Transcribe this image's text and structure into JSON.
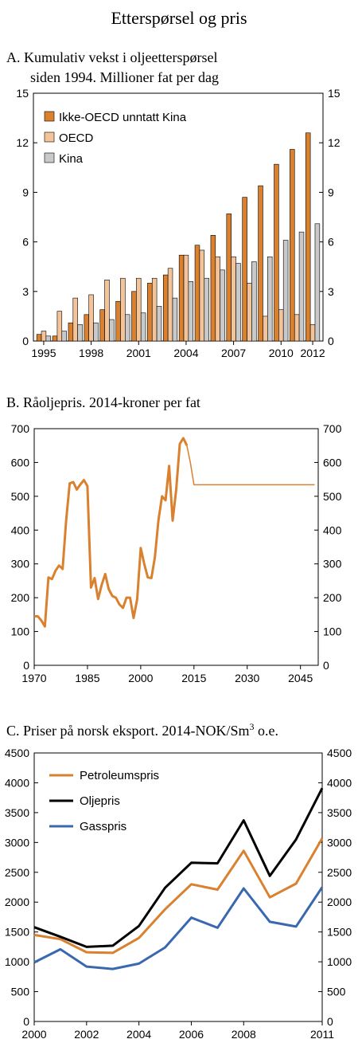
{
  "figure_title": "Etterspørsel og pris",
  "chart_data": [
    {
      "type": "bar",
      "title": "A. Kumulativ vekst i oljeetterspørsel",
      "subtitle": "siden 1994. Millioner fat per dag",
      "ylim": [
        0,
        15
      ],
      "yticks": [
        0,
        3,
        6,
        9,
        12,
        15
      ],
      "xtick_labels": [
        "1995",
        "1998",
        "2001",
        "2004",
        "2007",
        "2010",
        "2012"
      ],
      "categories": [
        "1995",
        "1996",
        "1997",
        "1998",
        "1999",
        "2000",
        "2001",
        "2002",
        "2003",
        "2004",
        "2005",
        "2006",
        "2007",
        "2008",
        "2009",
        "2010",
        "2011",
        "2012"
      ],
      "legend_position": "top-left",
      "series": [
        {
          "name": "Ikke-OECD unntatt Kina",
          "color": "#d9812f",
          "values": [
            0.4,
            0.3,
            1.1,
            1.6,
            1.9,
            2.4,
            3.0,
            3.5,
            4.0,
            5.2,
            5.8,
            6.4,
            7.7,
            8.7,
            9.4,
            10.7,
            11.6,
            12.6
          ]
        },
        {
          "name": "OECD",
          "color": "#f3c49a",
          "values": [
            0.6,
            1.8,
            2.6,
            2.8,
            3.7,
            3.8,
            3.8,
            3.8,
            4.4,
            5.2,
            5.5,
            5.1,
            5.1,
            3.5,
            1.5,
            1.9,
            1.6,
            1.0
          ]
        },
        {
          "name": "Kina",
          "color": "#c9c9c9",
          "values": [
            0.3,
            0.6,
            1.0,
            1.1,
            1.3,
            1.6,
            1.7,
            2.1,
            2.6,
            3.6,
            3.8,
            4.3,
            4.7,
            4.8,
            5.1,
            6.1,
            6.6,
            7.1
          ]
        }
      ]
    },
    {
      "type": "line",
      "title": "B. Råoljepris. 2014-kroner per fat",
      "xlim": [
        1970,
        2050
      ],
      "ylim": [
        0,
        700
      ],
      "xticks": [
        1970,
        1985,
        2000,
        2015,
        2030,
        2045
      ],
      "yticks": [
        0,
        100,
        200,
        300,
        400,
        500,
        600,
        700
      ],
      "series": [
        {
          "color": "#d9812f",
          "x": [
            1970,
            1971,
            1972,
            1973,
            1974,
            1975,
            1976,
            1977,
            1978,
            1979,
            1980,
            1981,
            1982,
            1983,
            1984,
            1985,
            1986,
            1987,
            1988,
            1989,
            1990,
            1991,
            1992,
            1993,
            1994,
            1995,
            1996,
            1997,
            1998,
            1999,
            2000,
            2001,
            2002,
            2003,
            2004,
            2005,
            2006,
            2007,
            2008,
            2009,
            2010,
            2011,
            2012,
            2013
          ],
          "y": [
            145,
            145,
            133,
            115,
            260,
            255,
            280,
            295,
            285,
            430,
            538,
            542,
            520,
            535,
            548,
            530,
            230,
            258,
            196,
            238,
            270,
            225,
            205,
            200,
            180,
            170,
            200,
            200,
            140,
            195,
            347,
            300,
            260,
            258,
            320,
            430,
            500,
            488,
            590,
            428,
            520,
            655,
            672,
            650
          ]
        },
        {
          "color": "#d9812f",
          "x": [
            2013,
            2014,
            2015,
            2049
          ],
          "y": [
            650,
            598,
            534,
            534
          ]
        }
      ]
    },
    {
      "type": "line",
      "title": "C.  Priser på norsk eksport. 2014-NOK/Sm",
      "title_superscript": "3",
      "title_suffix": " o.e.",
      "xlim": [
        2000,
        2011
      ],
      "ylim": [
        0,
        4500
      ],
      "xticks": [
        2000,
        2002,
        2004,
        2006,
        2008,
        2011
      ],
      "yticks": [
        0,
        500,
        1000,
        1500,
        2000,
        2500,
        3000,
        3500,
        4000,
        4500
      ],
      "legend_position": "top-left",
      "series": [
        {
          "name": "Petroleumspris",
          "color": "#d9812f",
          "x": [
            2000,
            2001,
            2002,
            2003,
            2004,
            2005,
            2006,
            2007,
            2008,
            2009,
            2010,
            2011
          ],
          "y": [
            1450,
            1380,
            1160,
            1150,
            1400,
            1880,
            2300,
            2210,
            2860,
            2080,
            2310,
            3070
          ]
        },
        {
          "name": "Oljepris",
          "color": "#000000",
          "x": [
            2000,
            2001,
            2002,
            2003,
            2004,
            2005,
            2006,
            2007,
            2008,
            2009,
            2010,
            2011
          ],
          "y": [
            1580,
            1420,
            1250,
            1270,
            1600,
            2240,
            2660,
            2650,
            3370,
            2440,
            3050,
            3910
          ]
        },
        {
          "name": "Gasspris",
          "color": "#3a68b0",
          "x": [
            2000,
            2001,
            2002,
            2003,
            2004,
            2005,
            2006,
            2007,
            2008,
            2009,
            2010,
            2011
          ],
          "y": [
            990,
            1210,
            920,
            880,
            970,
            1240,
            1740,
            1570,
            2230,
            1670,
            1590,
            2250
          ]
        }
      ]
    }
  ]
}
